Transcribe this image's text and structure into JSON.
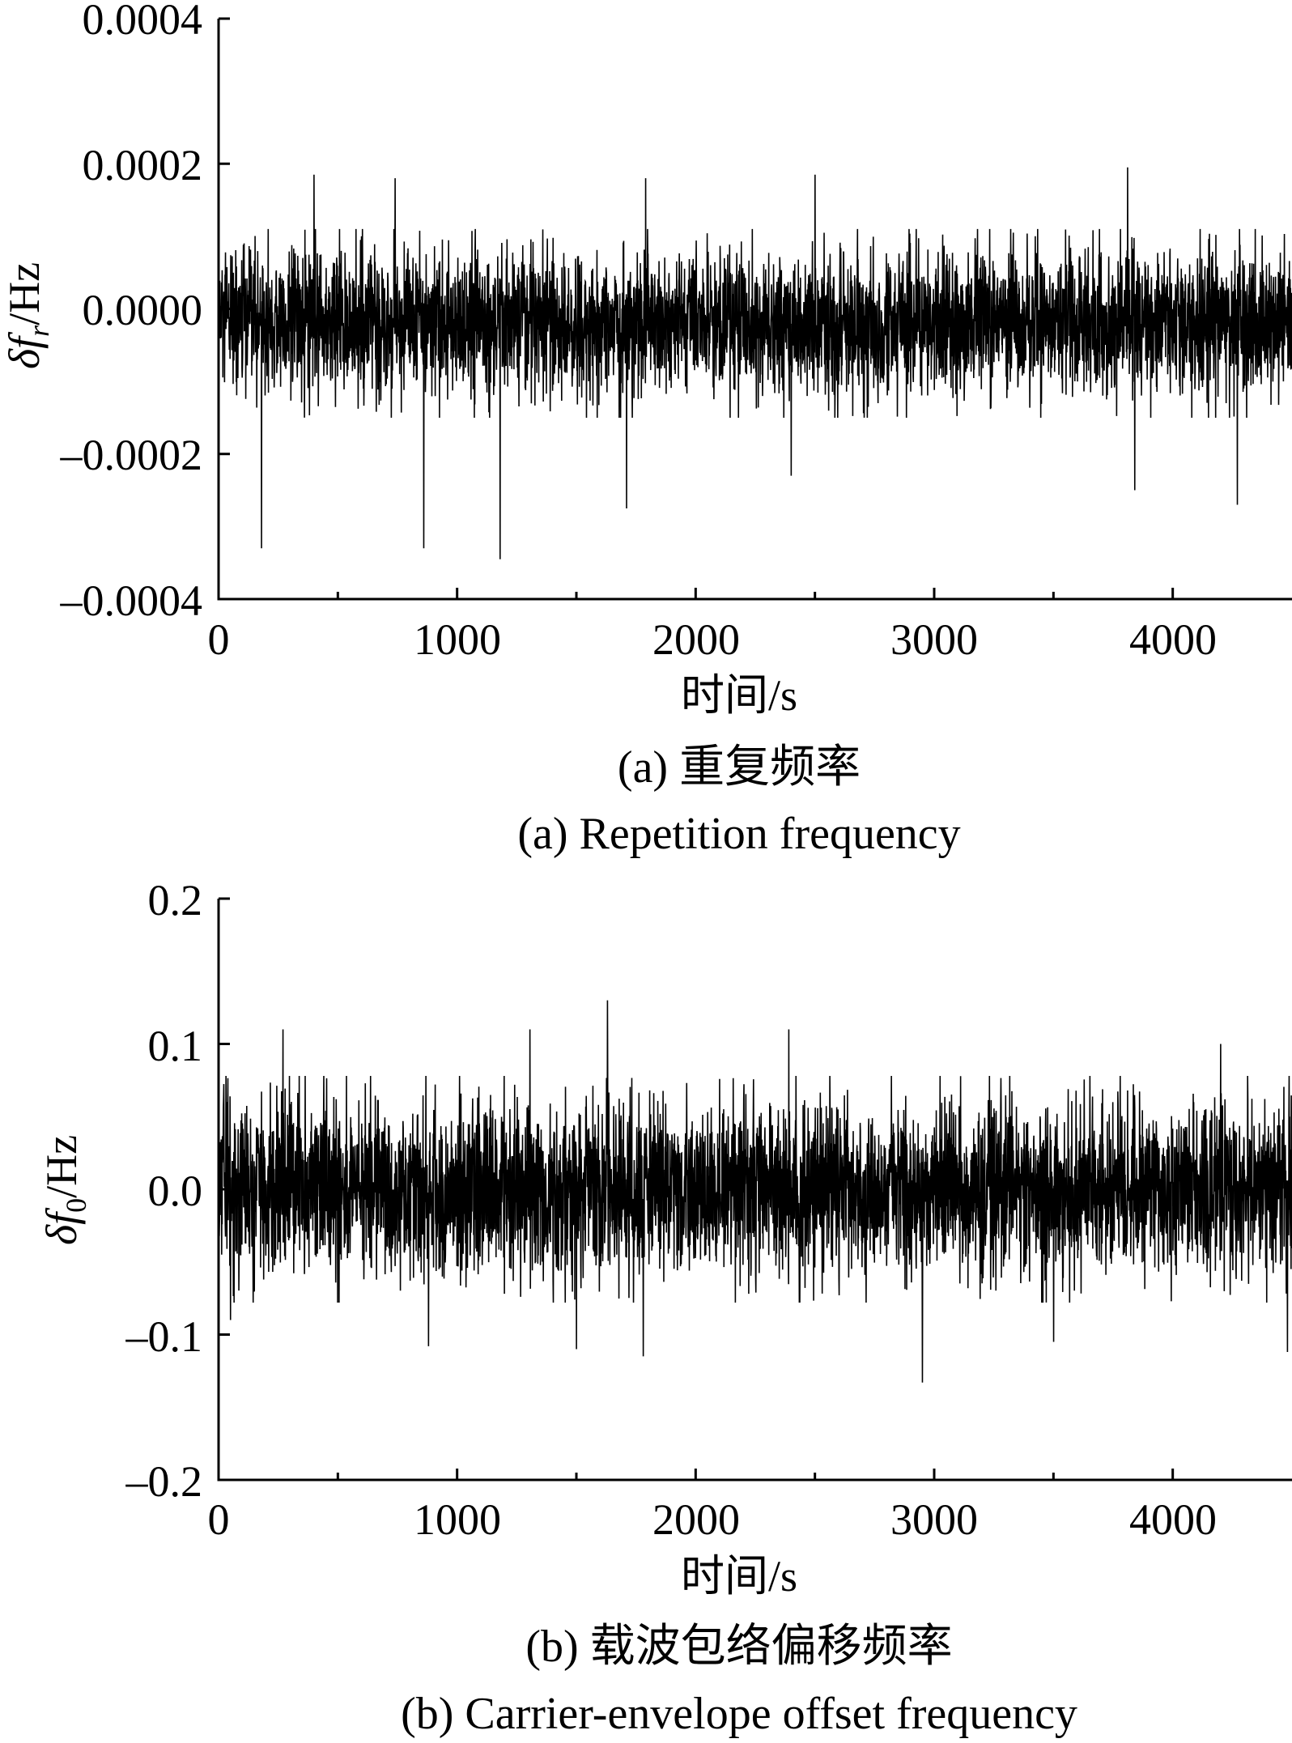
{
  "chart_data": [
    {
      "type": "line",
      "xlabel": "时间/s",
      "ylabel": {
        "prefix": "δf",
        "sub": "r",
        "suffix": "/Hz"
      },
      "xlim": [
        0,
        4500
      ],
      "ylim": [
        -0.0004,
        0.0004
      ],
      "xticks": [
        "0",
        "1000",
        "2000",
        "3000",
        "4000"
      ],
      "xtick_values": [
        0,
        1000,
        2000,
        3000,
        4000
      ],
      "yticks": [
        "0.0004",
        "0.0002",
        "0.0000",
        "–0.0002",
        "–0.0004"
      ],
      "ytick_values": [
        0.0004,
        0.0002,
        0.0,
        -0.0002,
        -0.0004
      ],
      "caption_cn": "(a) 重复频率",
      "caption_en": "(a) Repetition frequency",
      "grid": false,
      "series": [
        {
          "noise": {
            "n": 4500,
            "mean": -2e-05,
            "std": 5e-05,
            "spikes": [
              [
                180,
                -0.00033
              ],
              [
                860,
                -0.00033
              ],
              [
                1180,
                -0.000345
              ],
              [
                1710,
                -0.000275
              ],
              [
                400,
                0.000185
              ],
              [
                740,
                0.00018
              ],
              [
                1790,
                0.00018
              ],
              [
                2500,
                0.000185
              ],
              [
                3810,
                0.000195
              ],
              [
                4270,
                -0.00027
              ],
              [
                2400,
                -0.00023
              ],
              [
                3840,
                -0.00025
              ]
            ]
          }
        }
      ]
    },
    {
      "type": "line",
      "xlabel": "时间/s",
      "ylabel": {
        "prefix": "δf",
        "sub": "0",
        "suffix": "/Hz"
      },
      "xlim": [
        0,
        4500
      ],
      "ylim": [
        -0.2,
        0.2
      ],
      "xticks": [
        "0",
        "1000",
        "2000",
        "3000",
        "4000"
      ],
      "xtick_values": [
        0,
        1000,
        2000,
        3000,
        4000
      ],
      "yticks": [
        "0.2",
        "0.1",
        "0.0",
        "–0.1",
        "–0.2"
      ],
      "ytick_values": [
        0.2,
        0.1,
        0.0,
        -0.1,
        -0.2
      ],
      "caption_cn": "(b) 载波包络偏移频率",
      "caption_en": "(b) Carrier-envelope offset frequency",
      "grid": false,
      "series": [
        {
          "noise": {
            "n": 4500,
            "mean": 0.0,
            "std": 0.03,
            "spikes": [
              [
                1630,
                0.13
              ],
              [
                1305,
                0.11
              ],
              [
                2950,
                -0.133
              ],
              [
                1780,
                -0.115
              ],
              [
                880,
                -0.108
              ],
              [
                270,
                0.11
              ],
              [
                2390,
                0.11
              ],
              [
                4200,
                0.1
              ],
              [
                4480,
                -0.112
              ],
              [
                1500,
                -0.11
              ],
              [
                3500,
                -0.105
              ],
              [
                50,
                -0.09
              ]
            ]
          }
        }
      ]
    }
  ]
}
